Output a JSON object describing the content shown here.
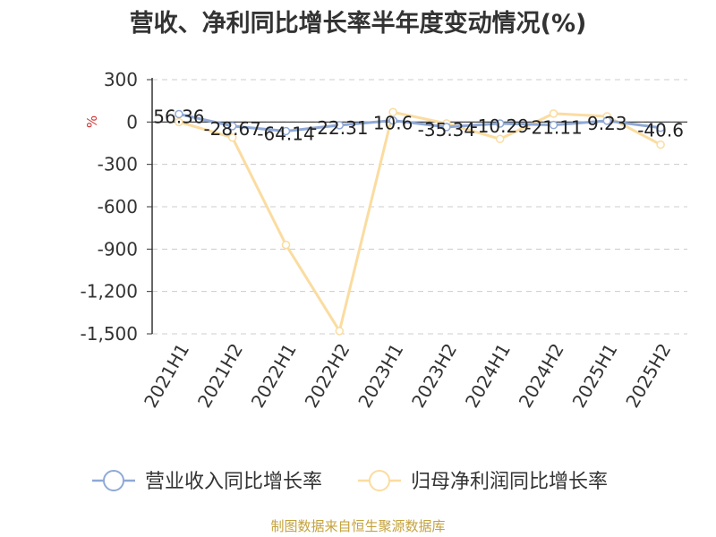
{
  "title": "营收、净利同比增长率半年度变动情况(%)",
  "source": "制图数据来自恒生聚源数据库",
  "chart_data": {
    "type": "line",
    "title": "营收、净利同比增长率半年度变动情况(%)",
    "ylabel": "%",
    "ylim": [
      -1500,
      300
    ],
    "yticks": [
      "300",
      "0",
      "-300",
      "-600",
      "-900",
      "-1,200",
      "-1,500"
    ],
    "ytick_values": [
      300,
      0,
      -300,
      -600,
      -900,
      -1200,
      -1500
    ],
    "categories": [
      "2021H1",
      "2021H2",
      "2022H1",
      "2022H2",
      "2023H1",
      "2023H2",
      "2024H1",
      "2024H2",
      "2025H1",
      "2025H2"
    ],
    "grid": true,
    "legend_position": "bottom",
    "series": [
      {
        "name": "营业收入同比增长率",
        "color": "#8fa9d6",
        "values": [
          56.36,
          -28.67,
          -64.14,
          -22.31,
          10.6,
          -35.34,
          -10.29,
          -21.11,
          9.23,
          -40.6
        ],
        "labels": [
          "56.36",
          "-28.67",
          "-64.14",
          "-22.31",
          "10.6",
          "-35.34",
          "-10.29",
          "-21.11",
          "9.23",
          "-40.6"
        ]
      },
      {
        "name": "归母净利润同比增长率",
        "color": "#fbdca0",
        "values": [
          0,
          -110,
          -870,
          -1480,
          70,
          -10,
          -120,
          60,
          40,
          -160
        ]
      }
    ]
  }
}
